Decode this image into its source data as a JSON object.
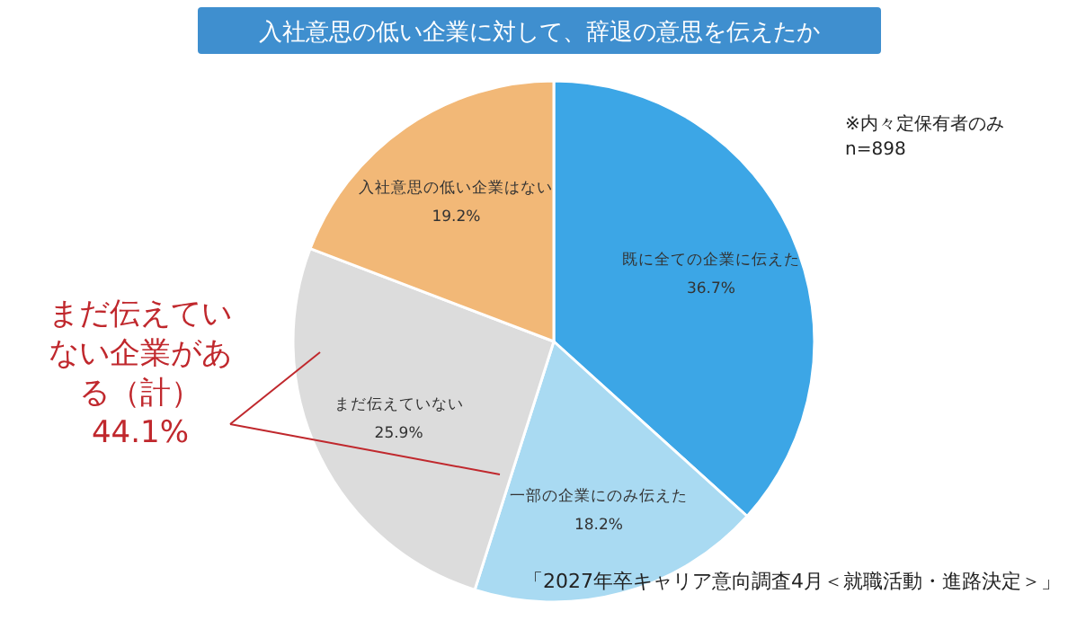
{
  "chart_data": {
    "type": "pie",
    "title": "入社意思の低い企業に対して、辞退の意思を伝えたか",
    "categories": [
      "既に全ての企業に伝えた",
      "一部の企業にのみ伝えた",
      "まだ伝えていない",
      "入社意思の低い企業はない"
    ],
    "values": [
      36.7,
      18.2,
      25.9,
      19.2
    ],
    "colors": [
      "#3ca6e6",
      "#a9daf2",
      "#dcdcdc",
      "#f2b877"
    ],
    "value_labels": [
      "36.7%",
      "18.2%",
      "25.9%",
      "19.2%"
    ],
    "annotations": [
      "※内々定保有者のみ",
      "n=898",
      "まだ伝えていない企業がある（計）",
      "44.1%",
      "「2027年卒キャリア意向調査4月＜就職活動・進路決定＞」"
    ]
  }
}
